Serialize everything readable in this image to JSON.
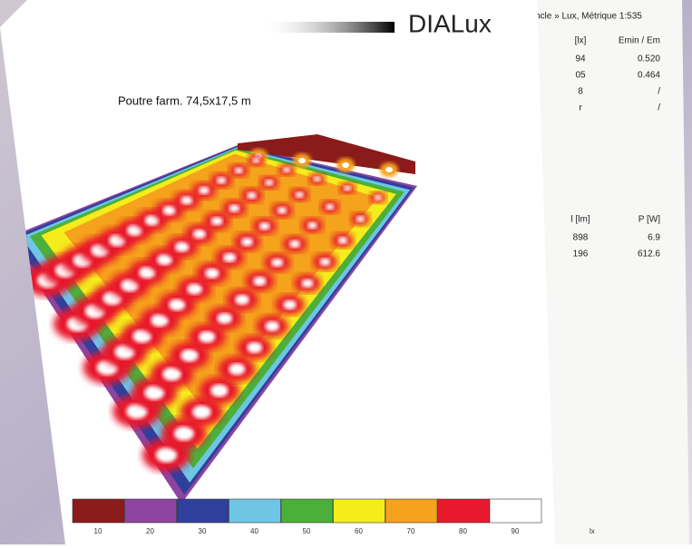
{
  "back_page": {
    "header": "ncle » Lux, Métrique 1:535",
    "table1": {
      "columns": [
        "[lx]",
        "Emin / Em"
      ],
      "rows": [
        [
          "94",
          "0.520"
        ],
        [
          "05",
          "0.464"
        ],
        [
          "8",
          "/"
        ],
        [
          "r",
          "/"
        ]
      ]
    },
    "table2": {
      "columns": [
        "l [lm]",
        "P [W]"
      ],
      "rows": [
        [
          "898",
          "6.9"
        ],
        [
          "196",
          "612.6"
        ]
      ]
    }
  },
  "front_page": {
    "logo": "DIALux",
    "title": "Poutre farm. 74,5x17,5 m",
    "legend": {
      "labels": [
        "10",
        "20",
        "30",
        "40",
        "50",
        "60",
        "70",
        "80",
        "90"
      ],
      "colors": [
        "#8b1a1a",
        "#8e44a0",
        "#2f3f9c",
        "#6ec6e4",
        "#4caf3a",
        "#f5ec1c",
        "#f5a21c",
        "#e8192c",
        "#ffffff"
      ],
      "unit": "lx"
    }
  }
}
